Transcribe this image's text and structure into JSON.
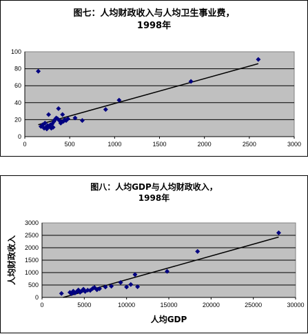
{
  "chart_data": [
    {
      "type": "scatter",
      "title_line1": "图七：人均财政收入与人均卫生事业费，",
      "title_line2": "1998年",
      "xlabel": "",
      "ylabel": "",
      "xlim": [
        0,
        3000
      ],
      "ylim": [
        0,
        100
      ],
      "xticks": [
        0,
        500,
        1000,
        1500,
        2000,
        2500,
        3000
      ],
      "yticks": [
        0,
        20,
        40,
        60,
        80,
        100
      ],
      "grid": true,
      "marker_color": "#000080",
      "plot_bg": "#c0c0c0",
      "points": [
        [
          150,
          77
        ],
        [
          180,
          12
        ],
        [
          200,
          14
        ],
        [
          215,
          10
        ],
        [
          225,
          16
        ],
        [
          235,
          11
        ],
        [
          245,
          9
        ],
        [
          255,
          13
        ],
        [
          265,
          26
        ],
        [
          270,
          12
        ],
        [
          285,
          14
        ],
        [
          295,
          10
        ],
        [
          305,
          15
        ],
        [
          315,
          11
        ],
        [
          325,
          18
        ],
        [
          335,
          20
        ],
        [
          350,
          22
        ],
        [
          365,
          21
        ],
        [
          375,
          33
        ],
        [
          385,
          19
        ],
        [
          400,
          16
        ],
        [
          410,
          17
        ],
        [
          420,
          26
        ],
        [
          430,
          18
        ],
        [
          445,
          20
        ],
        [
          460,
          19
        ],
        [
          480,
          21
        ],
        [
          560,
          22
        ],
        [
          640,
          19
        ],
        [
          900,
          32
        ],
        [
          1050,
          43
        ],
        [
          1850,
          65
        ],
        [
          2600,
          91
        ]
      ],
      "trendline": [
        [
          150,
          14
        ],
        [
          2600,
          86
        ]
      ]
    },
    {
      "type": "scatter",
      "title_line1": "图八：人均GDP与人均财政收入，",
      "title_line2": "1998年",
      "xlabel": "人均GDP",
      "ylabel": "人均财政收入",
      "xlim": [
        0,
        30000
      ],
      "ylim": [
        0,
        3000
      ],
      "xticks": [
        0,
        5000,
        10000,
        15000,
        20000,
        25000,
        30000
      ],
      "yticks": [
        0,
        500,
        1000,
        1500,
        2000,
        2500,
        3000
      ],
      "grid": true,
      "marker_color": "#000080",
      "plot_bg": "#c0c0c0",
      "points": [
        [
          2300,
          160
        ],
        [
          3300,
          200
        ],
        [
          3500,
          150
        ],
        [
          3700,
          250
        ],
        [
          3900,
          180
        ],
        [
          4100,
          230
        ],
        [
          4300,
          300
        ],
        [
          4500,
          210
        ],
        [
          4700,
          260
        ],
        [
          4900,
          330
        ],
        [
          5100,
          240
        ],
        [
          5400,
          290
        ],
        [
          5700,
          280
        ],
        [
          6000,
          360
        ],
        [
          6200,
          400
        ],
        [
          6500,
          310
        ],
        [
          6800,
          350
        ],
        [
          7500,
          420
        ],
        [
          8200,
          450
        ],
        [
          9300,
          600
        ],
        [
          10000,
          420
        ],
        [
          10500,
          520
        ],
        [
          11000,
          920
        ],
        [
          11300,
          430
        ],
        [
          14800,
          1050
        ],
        [
          18400,
          1850
        ],
        [
          28000,
          2600
        ]
      ],
      "trendline": [
        [
          2500,
          0
        ],
        [
          28000,
          2430
        ]
      ]
    }
  ]
}
